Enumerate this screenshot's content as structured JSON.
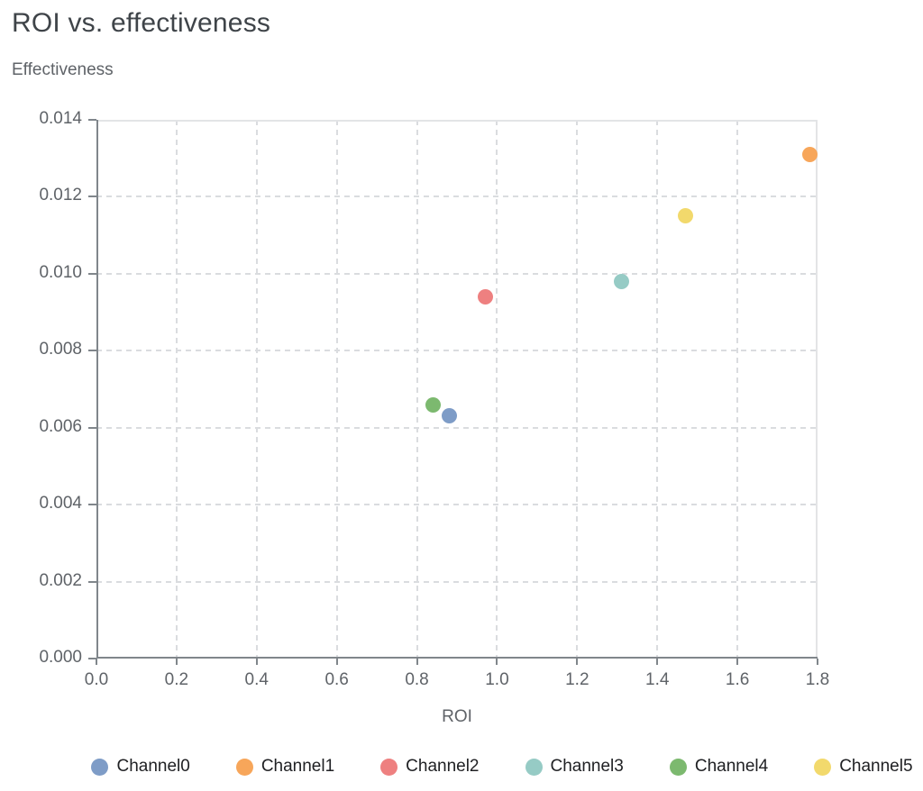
{
  "chart_data": {
    "type": "scatter",
    "title": "ROI vs. effectiveness",
    "xlabel": "ROI",
    "ylabel": "Effectiveness",
    "xlim": [
      0,
      1.8
    ],
    "ylim": [
      0,
      0.014
    ],
    "x_tick_values": [
      0,
      0.2,
      0.4,
      0.6,
      0.8,
      1.0,
      1.2,
      1.4,
      1.6,
      1.8
    ],
    "x_tick_labels": [
      "0.0",
      "0.2",
      "0.4",
      "0.6",
      "0.8",
      "1.0",
      "1.2",
      "1.4",
      "1.6",
      "1.8"
    ],
    "y_tick_values": [
      0,
      0.002,
      0.004,
      0.006,
      0.008,
      0.01,
      0.012,
      0.014
    ],
    "y_tick_labels": [
      "0.000",
      "0.002",
      "0.004",
      "0.006",
      "0.008",
      "0.010",
      "0.012",
      "0.014"
    ],
    "grid": "dashed",
    "legend_position": "bottom",
    "series": [
      {
        "name": "Channel0",
        "color": "#7E9CC7",
        "x": 0.88,
        "y": 0.0063
      },
      {
        "name": "Channel1",
        "color": "#F7A65A",
        "x": 1.78,
        "y": 0.0131
      },
      {
        "name": "Channel2",
        "color": "#EE8080",
        "x": 0.97,
        "y": 0.0094
      },
      {
        "name": "Channel3",
        "color": "#96CBC5",
        "x": 1.31,
        "y": 0.0098
      },
      {
        "name": "Channel4",
        "color": "#7CB96F",
        "x": 0.84,
        "y": 0.0066
      },
      {
        "name": "Channel5",
        "color": "#F2D96C",
        "x": 1.47,
        "y": 0.0115
      }
    ]
  }
}
